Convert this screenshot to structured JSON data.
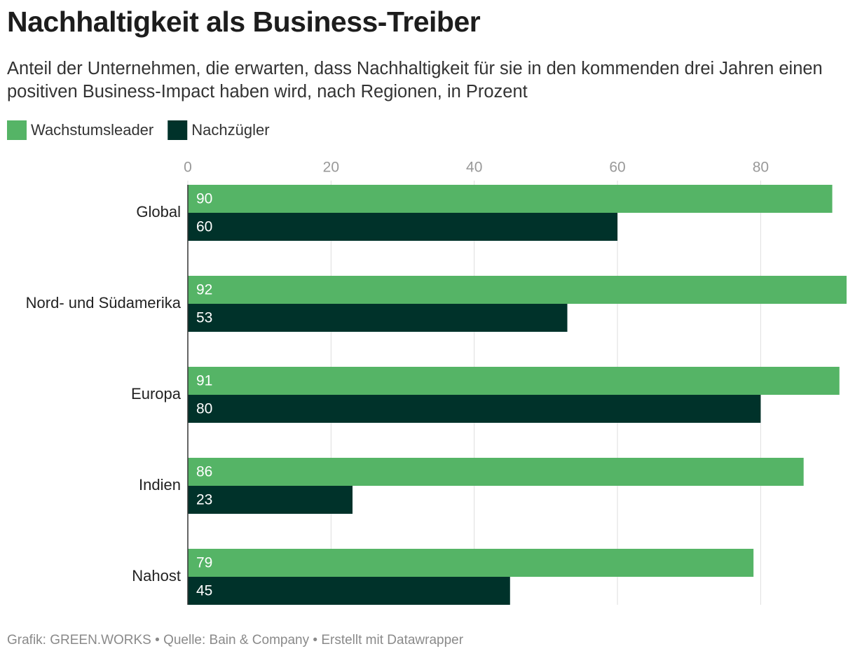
{
  "chart_data": {
    "type": "hbar",
    "title": "Nachhaltigkeit als Business-Treiber",
    "subtitle": "Anteil der Unternehmen, die erwarten, dass Nachhaltigkeit für sie in den kommenden drei Jahren einen positiven Business-Impact haben wird, nach Regionen, in Prozent",
    "footer": "Grafik: GREEN.WORKS • Quelle: Bain & Company • Erstellt mit Datawrapper",
    "categories": [
      "Global",
      "Nord- und Südamerika",
      "Europa",
      "Indien",
      "Nahost"
    ],
    "series": [
      {
        "name": "Wachstumsleader",
        "color": "#55b466",
        "values": [
          90,
          92,
          91,
          86,
          79
        ]
      },
      {
        "name": "Nachzügler",
        "color": "#00322a",
        "values": [
          60,
          53,
          80,
          23,
          45
        ]
      }
    ],
    "xlim": [
      0,
      92
    ],
    "xticks": [
      0,
      20,
      40,
      60,
      80
    ],
    "grid": true,
    "legend": "top-left"
  }
}
